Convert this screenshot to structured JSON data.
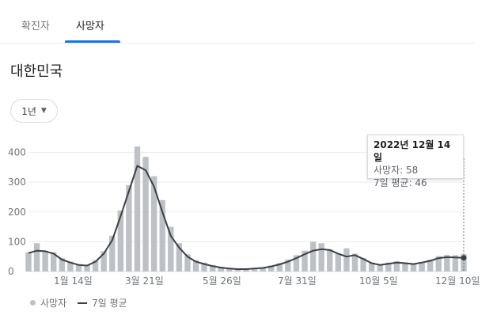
{
  "tabs": [
    {
      "label": "확진자"
    },
    {
      "label": "사망자"
    }
  ],
  "region": "대한민국",
  "range_button": {
    "label": "1년"
  },
  "tooltip": {
    "date": "2022년 12월 14일",
    "deaths": "사망자: 58",
    "avg": "7일 평균: 46"
  },
  "legend": {
    "deaths": "사망자",
    "avg": "7일 평균"
  },
  "colors": {
    "bars": "#bdc1c6",
    "avg_line": "#3c4043",
    "tab_accent": "#1a73e8"
  },
  "chart_data": {
    "type": "bar",
    "title": "",
    "xlabel": "",
    "ylabel": "",
    "ylim": [
      0,
      460
    ],
    "yticks": [
      0,
      100,
      200,
      300,
      400
    ],
    "xtick_labels": [
      "1월 14일",
      "3월 21일",
      "5월 26일",
      "7월 31일",
      "10월 5일",
      "12월 10일"
    ],
    "grid": true,
    "legend": "bottom-left",
    "series": [
      {
        "name": "사망자",
        "type": "bar",
        "x": [
          "2021-12-15",
          "2021-12-22",
          "2021-12-29",
          "2022-01-05",
          "2022-01-12",
          "2022-01-19",
          "2022-01-26",
          "2022-02-02",
          "2022-02-09",
          "2022-02-16",
          "2022-02-23",
          "2022-03-02",
          "2022-03-09",
          "2022-03-16",
          "2022-03-23",
          "2022-03-30",
          "2022-04-06",
          "2022-04-13",
          "2022-04-20",
          "2022-04-27",
          "2022-05-04",
          "2022-05-11",
          "2022-05-18",
          "2022-05-25",
          "2022-06-01",
          "2022-06-08",
          "2022-06-15",
          "2022-06-22",
          "2022-06-29",
          "2022-07-06",
          "2022-07-13",
          "2022-07-20",
          "2022-07-27",
          "2022-08-03",
          "2022-08-10",
          "2022-08-17",
          "2022-08-24",
          "2022-08-31",
          "2022-09-07",
          "2022-09-14",
          "2022-09-21",
          "2022-09-28",
          "2022-10-05",
          "2022-10-12",
          "2022-10-19",
          "2022-10-26",
          "2022-11-02",
          "2022-11-09",
          "2022-11-16",
          "2022-11-23",
          "2022-11-30",
          "2022-12-07",
          "2022-12-14"
        ],
        "values": [
          64,
          95,
          70,
          65,
          45,
          33,
          25,
          22,
          38,
          68,
          120,
          205,
          290,
          420,
          385,
          320,
          240,
          150,
          95,
          58,
          38,
          30,
          22,
          16,
          12,
          10,
          9,
          12,
          14,
          20,
          28,
          40,
          55,
          70,
          100,
          95,
          75,
          60,
          78,
          60,
          45,
          30,
          25,
          30,
          35,
          30,
          28,
          32,
          40,
          52,
          56,
          55,
          58
        ]
      },
      {
        "name": "7일 평균",
        "type": "line",
        "x": [
          "2021-12-15",
          "2021-12-22",
          "2021-12-29",
          "2022-01-05",
          "2022-01-12",
          "2022-01-19",
          "2022-01-26",
          "2022-02-02",
          "2022-02-09",
          "2022-02-16",
          "2022-02-23",
          "2022-03-02",
          "2022-03-09",
          "2022-03-16",
          "2022-03-23",
          "2022-03-30",
          "2022-04-06",
          "2022-04-13",
          "2022-04-20",
          "2022-04-27",
          "2022-05-04",
          "2022-05-11",
          "2022-05-18",
          "2022-05-25",
          "2022-06-01",
          "2022-06-08",
          "2022-06-15",
          "2022-06-22",
          "2022-06-29",
          "2022-07-06",
          "2022-07-13",
          "2022-07-20",
          "2022-07-27",
          "2022-08-03",
          "2022-08-10",
          "2022-08-17",
          "2022-08-24",
          "2022-08-31",
          "2022-09-07",
          "2022-09-14",
          "2022-09-21",
          "2022-09-28",
          "2022-10-05",
          "2022-10-12",
          "2022-10-19",
          "2022-10-26",
          "2022-11-02",
          "2022-11-09",
          "2022-11-16",
          "2022-11-23",
          "2022-11-30",
          "2022-12-07",
          "2022-12-14"
        ],
        "values": [
          62,
          70,
          68,
          60,
          40,
          30,
          22,
          20,
          33,
          60,
          105,
          185,
          270,
          355,
          340,
          285,
          200,
          120,
          80,
          50,
          33,
          25,
          18,
          13,
          10,
          8,
          8,
          10,
          12,
          17,
          24,
          33,
          45,
          58,
          70,
          75,
          72,
          60,
          50,
          55,
          42,
          28,
          22,
          26,
          30,
          28,
          25,
          30,
          36,
          45,
          48,
          47,
          46
        ]
      }
    ]
  }
}
